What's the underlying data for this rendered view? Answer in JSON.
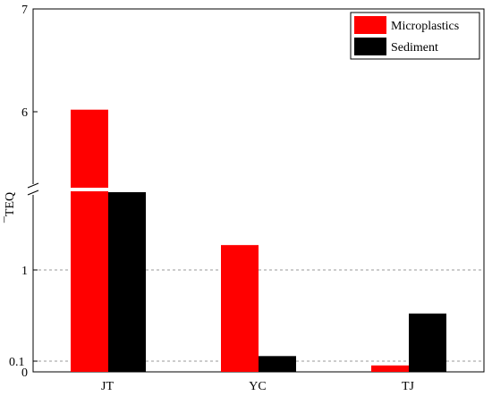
{
  "chart_data": {
    "type": "bar",
    "categories": [
      "JT",
      "YC",
      "TJ"
    ],
    "series": [
      {
        "name": "Microplastics",
        "color": "#ff0000",
        "values": [
          6.02,
          1.32,
          0.06
        ]
      },
      {
        "name": "Sediment",
        "color": "#000000",
        "values": [
          2.0,
          0.15,
          0.57
        ]
      }
    ],
    "ylabel": "¯TEQ",
    "y_ticks": [
      "0",
      "0.1",
      "1",
      "6",
      "7"
    ],
    "y_axis_break": true,
    "gridlines": "dashed at 0.1 and 1",
    "legend": "top-right"
  }
}
